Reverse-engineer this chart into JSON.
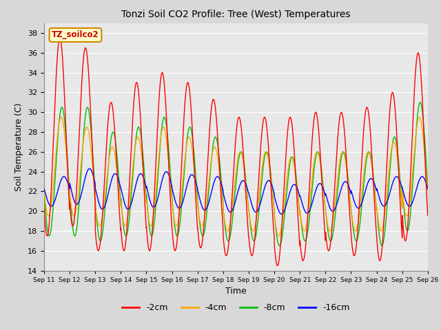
{
  "title": "Tonzi Soil CO2 Profile: Tree (West) Temperatures",
  "xlabel": "Time",
  "ylabel": "Soil Temperature (C)",
  "ylim": [
    14,
    39
  ],
  "yticks": [
    14,
    16,
    18,
    20,
    22,
    24,
    26,
    28,
    30,
    32,
    34,
    36,
    38
  ],
  "bg_color": "#d8d8d8",
  "plot_bg_color": "#e8e8e8",
  "legend_label": "TZ_soilco2",
  "series_labels": [
    "-2cm",
    "-4cm",
    "-8cm",
    "-16cm"
  ],
  "series_colors": [
    "#ff0000",
    "#ffa500",
    "#00bb00",
    "#0000ff"
  ],
  "n_days": 15,
  "start_day": 11,
  "points_per_day": 144,
  "day_means_2cm": [
    27.5,
    27.5,
    23.5,
    24.5,
    25.0,
    24.5,
    23.8,
    22.5,
    22.5,
    22.0,
    22.5,
    23.0,
    23.0,
    23.5,
    26.5
  ],
  "day_amps_2cm": [
    10.0,
    9.0,
    7.5,
    8.5,
    9.0,
    8.5,
    7.5,
    7.0,
    7.0,
    7.5,
    7.5,
    7.0,
    7.5,
    8.5,
    9.5
  ],
  "day_means_4cm": [
    24.5,
    24.0,
    22.5,
    23.0,
    23.5,
    23.0,
    22.5,
    22.0,
    22.0,
    21.5,
    22.0,
    22.0,
    22.0,
    22.5,
    24.5
  ],
  "day_amps_4cm": [
    5.0,
    4.5,
    4.0,
    4.5,
    5.0,
    4.5,
    4.0,
    4.0,
    4.0,
    4.0,
    4.0,
    4.0,
    4.0,
    4.5,
    5.0
  ],
  "day_means_8cm": [
    24.0,
    24.0,
    22.5,
    23.0,
    23.5,
    23.0,
    22.5,
    21.5,
    21.5,
    21.0,
    21.5,
    21.5,
    21.5,
    22.0,
    24.5
  ],
  "day_amps_8cm": [
    6.5,
    6.5,
    5.5,
    5.5,
    6.0,
    5.5,
    5.0,
    4.5,
    4.5,
    4.5,
    4.5,
    4.5,
    4.5,
    5.5,
    6.5
  ],
  "day_means_16cm": [
    22.0,
    22.5,
    22.0,
    22.0,
    22.2,
    22.0,
    21.8,
    21.5,
    21.5,
    21.2,
    21.3,
    21.5,
    21.8,
    22.0,
    22.0
  ],
  "day_amps_16cm": [
    1.5,
    1.8,
    1.8,
    1.8,
    1.8,
    1.7,
    1.7,
    1.6,
    1.6,
    1.5,
    1.5,
    1.5,
    1.5,
    1.5,
    1.5
  ],
  "phase_peak_2cm": 0.62,
  "phase_peak_4cm": 0.67,
  "phase_peak_8cm": 0.7,
  "phase_peak_16cm": 0.78
}
